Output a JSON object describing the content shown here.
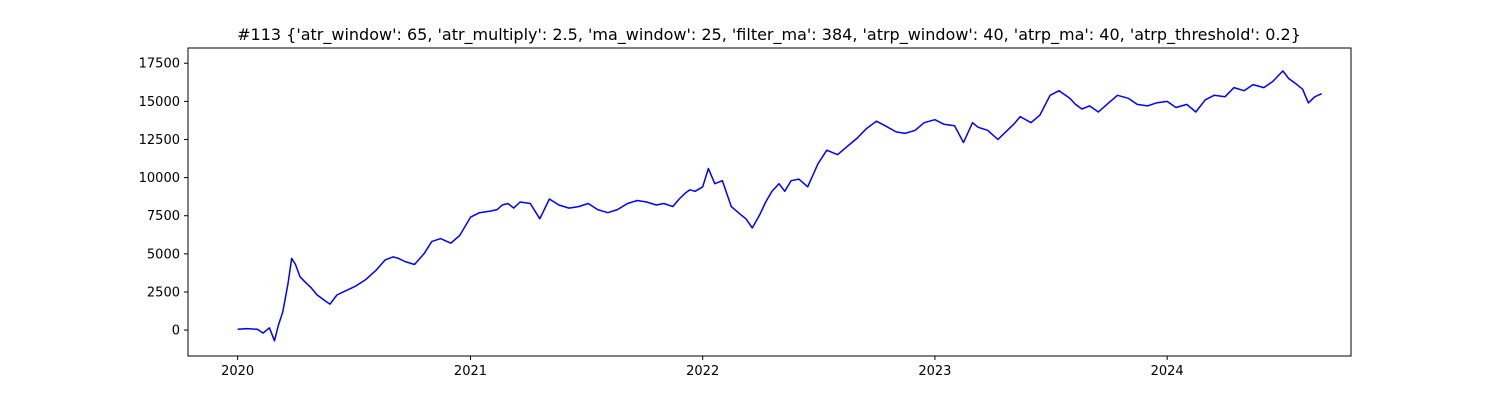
{
  "chart_data": {
    "type": "line",
    "title": "#113 {'atr_window': 65, 'atr_multiply': 2.5, 'ma_window': 25, 'filter_ma': 384, 'atrp_window': 40, 'atrp_ma': 40, 'atrp_threshold': 0.2}",
    "xlabel": "",
    "ylabel": "",
    "x_axis_type": "date",
    "xlim": [
      "2019-10-15",
      "2024-10-16"
    ],
    "ylim": [
      -1700,
      18500
    ],
    "x_ticks": [
      {
        "value": "2020-01-01",
        "label": "2020"
      },
      {
        "value": "2021-01-01",
        "label": "2021"
      },
      {
        "value": "2022-01-01",
        "label": "2022"
      },
      {
        "value": "2023-01-01",
        "label": "2023"
      },
      {
        "value": "2024-01-01",
        "label": "2024"
      }
    ],
    "y_ticks": [
      {
        "value": 0,
        "label": "0"
      },
      {
        "value": 2500,
        "label": "2500"
      },
      {
        "value": 5000,
        "label": "5000"
      },
      {
        "value": 7500,
        "label": "7500"
      },
      {
        "value": 10000,
        "label": "10000"
      },
      {
        "value": 12500,
        "label": "12500"
      },
      {
        "value": 15000,
        "label": "15000"
      },
      {
        "value": 17500,
        "label": "17500"
      }
    ],
    "grid": false,
    "legend": "none",
    "series": [
      {
        "color": "#0000ff",
        "x": [
          "2020-01-01",
          "2020-01-15",
          "2020-02-01",
          "2020-02-10",
          "2020-02-20",
          "2020-02-28",
          "2020-03-05",
          "2020-03-12",
          "2020-03-20",
          "2020-03-26",
          "2020-04-01",
          "2020-04-08",
          "2020-04-15",
          "2020-04-25",
          "2020-05-05",
          "2020-05-15",
          "2020-05-25",
          "2020-06-05",
          "2020-06-20",
          "2020-07-05",
          "2020-07-20",
          "2020-08-05",
          "2020-08-20",
          "2020-09-01",
          "2020-09-10",
          "2020-09-20",
          "2020-10-05",
          "2020-10-20",
          "2020-11-01",
          "2020-11-15",
          "2020-12-01",
          "2020-12-15",
          "2021-01-01",
          "2021-01-15",
          "2021-02-01",
          "2021-02-12",
          "2021-02-20",
          "2021-03-01",
          "2021-03-10",
          "2021-03-20",
          "2021-04-05",
          "2021-04-20",
          "2021-05-05",
          "2021-05-20",
          "2021-06-05",
          "2021-06-20",
          "2021-07-05",
          "2021-07-20",
          "2021-08-05",
          "2021-08-20",
          "2021-09-05",
          "2021-09-20",
          "2021-10-05",
          "2021-10-20",
          "2021-11-01",
          "2021-11-15",
          "2021-11-25",
          "2021-12-05",
          "2021-12-12",
          "2021-12-20",
          "2022-01-01",
          "2022-01-10",
          "2022-01-20",
          "2022-02-01",
          "2022-02-15",
          "2022-03-01",
          "2022-03-10",
          "2022-03-20",
          "2022-04-01",
          "2022-04-10",
          "2022-04-20",
          "2022-05-01",
          "2022-05-10",
          "2022-05-20",
          "2022-06-01",
          "2022-06-15",
          "2022-07-01",
          "2022-07-15",
          "2022-08-01",
          "2022-08-15",
          "2022-09-01",
          "2022-09-15",
          "2022-10-01",
          "2022-10-15",
          "2022-11-01",
          "2022-11-15",
          "2022-12-01",
          "2022-12-15",
          "2023-01-01",
          "2023-01-15",
          "2023-02-01",
          "2023-02-15",
          "2023-03-01",
          "2023-03-10",
          "2023-03-25",
          "2023-04-10",
          "2023-04-25",
          "2023-05-05",
          "2023-05-15",
          "2023-06-01",
          "2023-06-15",
          "2023-07-01",
          "2023-07-15",
          "2023-08-01",
          "2023-08-10",
          "2023-08-20",
          "2023-09-01",
          "2023-09-15",
          "2023-10-01",
          "2023-10-15",
          "2023-11-01",
          "2023-11-15",
          "2023-12-01",
          "2023-12-15",
          "2024-01-01",
          "2024-01-15",
          "2024-02-01",
          "2024-02-15",
          "2024-03-01",
          "2024-03-15",
          "2024-04-01",
          "2024-04-15",
          "2024-05-01",
          "2024-05-15",
          "2024-06-01",
          "2024-06-15",
          "2024-07-01",
          "2024-07-10",
          "2024-07-20",
          "2024-08-01",
          "2024-08-10",
          "2024-08-20",
          "2024-08-31"
        ],
        "y": [
          50,
          100,
          50,
          -200,
          150,
          -700,
          300,
          1200,
          3000,
          4700,
          4300,
          3500,
          3200,
          2800,
          2300,
          2000,
          1700,
          2300,
          2600,
          2900,
          3300,
          3900,
          4600,
          4800,
          4700,
          4500,
          4300,
          5000,
          5800,
          6000,
          5700,
          6200,
          7400,
          7700,
          7800,
          7900,
          8200,
          8300,
          8000,
          8400,
          8300,
          7300,
          8600,
          8200,
          8000,
          8100,
          8300,
          7900,
          7700,
          7900,
          8300,
          8500,
          8400,
          8200,
          8300,
          8100,
          8600,
          9000,
          9200,
          9100,
          9400,
          10600,
          9600,
          9800,
          8100,
          7600,
          7300,
          6700,
          7600,
          8400,
          9100,
          9600,
          9100,
          9800,
          9900,
          9400,
          10900,
          11800,
          11500,
          12000,
          12600,
          13200,
          13700,
          13400,
          13000,
          12900,
          13100,
          13600,
          13800,
          13500,
          13400,
          12300,
          13600,
          13300,
          13100,
          12500,
          13100,
          13500,
          14000,
          13600,
          14100,
          15400,
          15700,
          15200,
          14800,
          14500,
          14700,
          14300,
          14900,
          15400,
          15200,
          14800,
          14700,
          14900,
          15000,
          14600,
          14800,
          14300,
          15100,
          15400,
          15300,
          15900,
          15700,
          16100,
          15900,
          16300,
          17000,
          16500,
          16200,
          15800,
          14900,
          15300,
          15500
        ]
      }
    ]
  }
}
